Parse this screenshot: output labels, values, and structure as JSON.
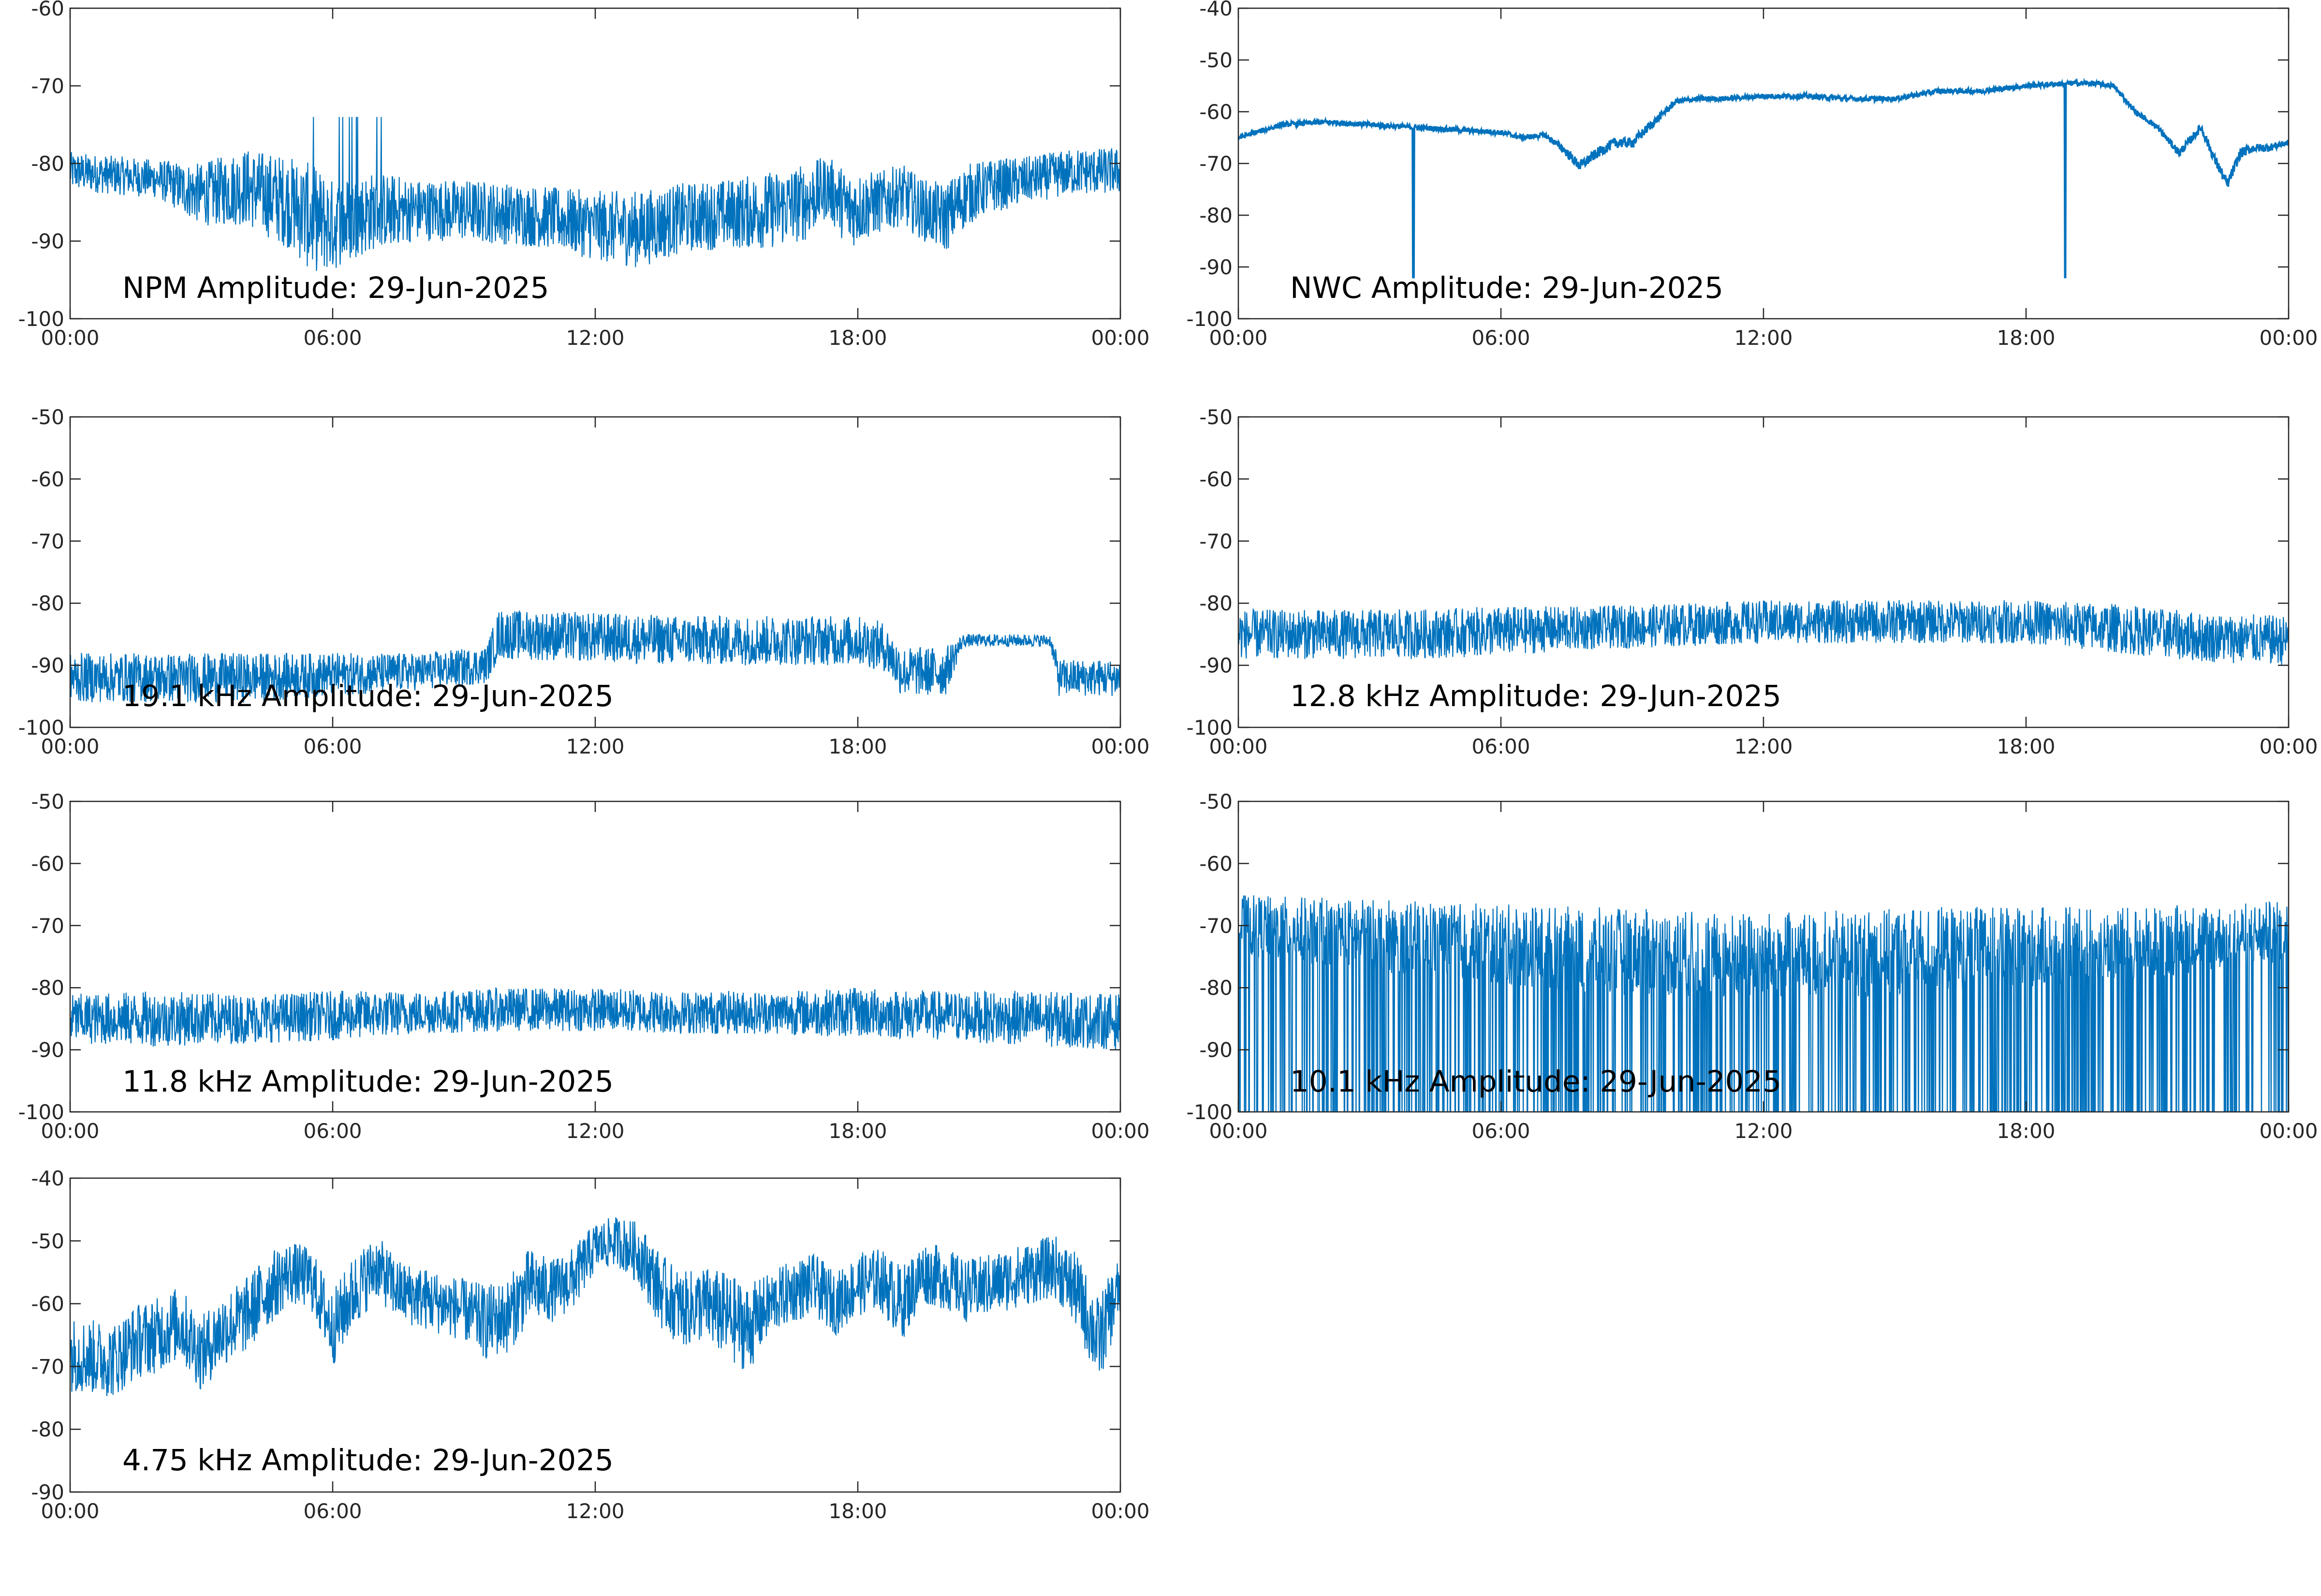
{
  "figure": {
    "background": "#ffffff",
    "line_color": "#0072bd",
    "axis_color": "#262626"
  },
  "chart_data": [
    {
      "type": "line",
      "title": "NPM Amplitude: 29-Jun-2025",
      "x_ticks": [
        "00:00",
        "06:00",
        "12:00",
        "18:00",
        "00:00"
      ],
      "xlim": [
        0,
        24
      ],
      "ylim": [
        -100,
        -60
      ],
      "y_ticks": [
        -100,
        -90,
        -80,
        -70,
        -60
      ],
      "grid": false,
      "series": [
        {
          "x": [
            0,
            1,
            2,
            3,
            4,
            5,
            5.5,
            6,
            7,
            8,
            9,
            10,
            11,
            12,
            13,
            14,
            15,
            16,
            16.8,
            17.3,
            17.8,
            18.5,
            19,
            19.5,
            20,
            20.5,
            21,
            22,
            23,
            24
          ],
          "values": [
            -81,
            -81.5,
            -82,
            -84,
            -83,
            -85,
            -87,
            -88,
            -86,
            -86,
            -86,
            -86.5,
            -87,
            -88,
            -88.5,
            -87,
            -86.5,
            -86,
            -85,
            -83,
            -86,
            -85,
            -84,
            -86,
            -87,
            -84,
            -83,
            -82,
            -81,
            -81
          ],
          "noise": [
            2.5,
            2.5,
            2.5,
            4,
            5,
            6,
            7,
            6,
            5,
            4,
            4,
            4,
            4,
            4.5,
            5,
            4.5,
            4.5,
            5,
            5,
            4,
            5,
            4,
            4,
            4,
            4.5,
            4,
            3.5,
            3,
            3,
            3
          ]
        }
      ]
    },
    {
      "type": "line",
      "title": "NWC Amplitude: 29-Jun-2025",
      "x_ticks": [
        "00:00",
        "06:00",
        "12:00",
        "18:00",
        "00:00"
      ],
      "xlim": [
        0,
        24
      ],
      "ylim": [
        -100,
        -40
      ],
      "y_ticks": [
        -100,
        -90,
        -80,
        -70,
        -60,
        -50,
        -40
      ],
      "grid": false,
      "series": [
        {
          "x": [
            0,
            1,
            2,
            3,
            4,
            5,
            6,
            6.5,
            7,
            7.4,
            7.8,
            8.2,
            8.6,
            9,
            9.5,
            10,
            10.5,
            11,
            12,
            13,
            14,
            15,
            16,
            17,
            18,
            19,
            19.5,
            20,
            20.5,
            21,
            21.5,
            22,
            22.3,
            22.6,
            22.9,
            23.2,
            23.5,
            24
          ],
          "values": [
            -65,
            -62.5,
            -62,
            -62.5,
            -63,
            -63.5,
            -64,
            -65,
            -64.5,
            -67,
            -70.5,
            -68,
            -66,
            -66,
            -62,
            -58,
            -57.5,
            -57.5,
            -57,
            -57,
            -57.5,
            -57.5,
            -56,
            -56,
            -55,
            -54.5,
            -54.5,
            -55,
            -60,
            -63,
            -68,
            -63,
            -69,
            -74,
            -68,
            -67,
            -67,
            -66
          ],
          "noise": [
            0.5,
            0.5,
            0.5,
            0.5,
            0.5,
            0.5,
            0.5,
            0.5,
            0.5,
            0.8,
            1,
            1,
            1,
            1,
            0.8,
            0.5,
            0.5,
            0.5,
            0.5,
            0.5,
            0.5,
            0.5,
            0.5,
            0.5,
            0.5,
            0.5,
            0.5,
            0.5,
            0.5,
            0.5,
            0.8,
            0.8,
            1,
            1,
            1,
            0.8,
            0.8,
            0.5
          ]
        }
      ]
    },
    {
      "type": "line",
      "title": "19.1 kHz Amplitude: 29-Jun-2025",
      "x_ticks": [
        "00:00",
        "06:00",
        "12:00",
        "18:00",
        "00:00"
      ],
      "xlim": [
        0,
        24
      ],
      "ylim": [
        -100,
        -50
      ],
      "y_ticks": [
        -100,
        -90,
        -80,
        -70,
        -60,
        -50
      ],
      "grid": false,
      "series": [
        {
          "x": [
            0,
            2,
            4,
            6,
            8,
            9.5,
            9.8,
            12,
            14,
            16,
            18,
            18.6,
            19,
            20,
            20.4,
            21,
            22.4,
            22.6,
            24
          ],
          "values": [
            -92,
            -92,
            -92,
            -91.5,
            -91,
            -90,
            -85,
            -85.5,
            -86,
            -86,
            -86,
            -87,
            -91,
            -91,
            -86,
            -86,
            -86,
            -92,
            -92
          ],
          "noise": [
            4,
            4,
            4,
            3.5,
            3,
            3,
            4,
            4,
            4,
            4,
            4,
            4,
            4,
            4,
            1,
            1,
            1,
            3,
            3
          ]
        }
      ]
    },
    {
      "type": "line",
      "title": "12.8 kHz Amplitude: 29-Jun-2025",
      "x_ticks": [
        "00:00",
        "06:00",
        "12:00",
        "18:00",
        "00:00"
      ],
      "xlim": [
        0,
        24
      ],
      "ylim": [
        -100,
        -50
      ],
      "y_ticks": [
        -100,
        -90,
        -80,
        -70,
        -60,
        -50
      ],
      "grid": false,
      "series": [
        {
          "x": [
            0,
            2,
            4,
            6,
            8,
            10,
            12,
            14,
            16,
            18,
            20,
            22,
            24
          ],
          "values": [
            -85,
            -85,
            -85,
            -84.5,
            -84,
            -83.5,
            -83,
            -83,
            -83,
            -83,
            -84,
            -85.5,
            -86
          ],
          "noise": [
            4,
            4,
            4,
            4,
            3.5,
            3.5,
            3.5,
            3.5,
            3.5,
            3.5,
            4,
            4,
            4
          ]
        }
      ]
    },
    {
      "type": "line",
      "title": "11.8 kHz Amplitude: 29-Jun-2025",
      "x_ticks": [
        "00:00",
        "06:00",
        "12:00",
        "18:00",
        "00:00"
      ],
      "xlim": [
        0,
        24
      ],
      "ylim": [
        -100,
        -50
      ],
      "y_ticks": [
        -100,
        -90,
        -80,
        -70,
        -60,
        -50
      ],
      "grid": false,
      "series": [
        {
          "x": [
            0,
            2,
            4,
            6,
            8,
            10,
            12,
            14,
            16,
            18,
            20,
            22,
            24
          ],
          "values": [
            -85,
            -85,
            -85,
            -84.5,
            -84,
            -83.5,
            -83.5,
            -84,
            -84,
            -84,
            -84.5,
            -85,
            -85.5
          ],
          "noise": [
            4,
            4.5,
            4,
            4,
            3.5,
            3.5,
            3.5,
            3.5,
            3.5,
            4,
            4,
            4.5,
            4.5
          ]
        }
      ]
    },
    {
      "type": "line",
      "title": "10.1 kHz Amplitude: 29-Jun-2025",
      "x_ticks": [
        "00:00",
        "06:00",
        "12:00",
        "18:00",
        "00:00"
      ],
      "xlim": [
        0,
        24
      ],
      "ylim": [
        -100,
        -50
      ],
      "y_ticks": [
        -100,
        -90,
        -80,
        -70,
        -60,
        -50
      ],
      "grid": false,
      "series": [
        {
          "x": [
            0,
            4,
            8,
            12,
            16,
            20,
            24
          ],
          "values": [
            -70,
            -72,
            -74,
            -75,
            -74,
            -73,
            -71
          ],
          "noise": [
            5,
            6,
            7,
            7,
            7,
            6,
            5
          ]
        }
      ]
    },
    {
      "type": "line",
      "title": "4.75 kHz Amplitude: 29-Jun-2025",
      "x_ticks": [
        "00:00",
        "06:00",
        "12:00",
        "18:00",
        "00:00"
      ],
      "xlim": [
        0,
        24
      ],
      "ylim": [
        -90,
        -40
      ],
      "y_ticks": [
        -90,
        -80,
        -70,
        -60,
        -50,
        -40
      ],
      "grid": false,
      "series": [
        {
          "x": [
            0,
            1,
            1.5,
            2,
            2.5,
            3,
            3.5,
            4,
            4.5,
            5,
            5.5,
            6,
            6.5,
            7,
            7.5,
            8,
            8.5,
            9,
            9.5,
            10,
            10.5,
            11,
            11.5,
            12,
            12.5,
            13,
            13.5,
            14,
            14.5,
            15,
            15.5,
            16,
            16.5,
            17,
            17.5,
            18,
            18.5,
            19,
            19.5,
            20,
            20.5,
            21,
            21.5,
            22,
            22.5,
            23,
            23.5,
            24
          ],
          "values": [
            -68,
            -69,
            -66,
            -65,
            -63,
            -68,
            -64,
            -62,
            -58,
            -55,
            -56,
            -64,
            -58,
            -54,
            -58,
            -59,
            -60,
            -61,
            -63,
            -62,
            -57,
            -58,
            -56,
            -51,
            -50,
            -52,
            -58,
            -61,
            -60,
            -62,
            -64,
            -60,
            -58,
            -57,
            -60,
            -57,
            -56,
            -60,
            -55,
            -56,
            -58,
            -57,
            -56,
            -55,
            -54,
            -58,
            -66,
            -57
          ],
          "noise": [
            6,
            6,
            6,
            6,
            6,
            6,
            6,
            6,
            6,
            5,
            5,
            6,
            6,
            5,
            5,
            5,
            5,
            5,
            6,
            6,
            6,
            5,
            5,
            4,
            4,
            5,
            6,
            6,
            6,
            7,
            7,
            5,
            5,
            5,
            5,
            5,
            5,
            6,
            5,
            5,
            5,
            5,
            5,
            5,
            5,
            6,
            7,
            5
          ]
        }
      ]
    }
  ]
}
